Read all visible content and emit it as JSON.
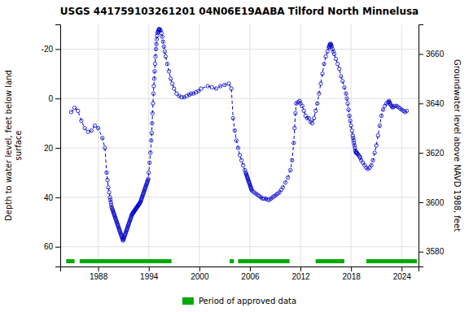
{
  "chart_data": {
    "type": "line",
    "title": "USGS 441759103261201 04N06E19AABA Tilford North Minnelusa",
    "y_label": "Depth to water level, feet below land\nsurface",
    "y2_label": "Groundwater level above NAVD 1988, feet",
    "x": [
      1984.8,
      1985.2,
      1985.6,
      1986.0,
      1986.4,
      1986.8,
      1987.2,
      1987.6,
      1988.0,
      1988.5,
      1988.8,
      1989.0,
      1989.1,
      1989.2,
      1989.3,
      1989.4,
      1989.45,
      1989.5,
      1989.55,
      1989.6,
      1989.65,
      1989.7,
      1989.75,
      1989.8,
      1989.85,
      1989.9,
      1989.95,
      1990.0,
      1990.05,
      1990.1,
      1990.15,
      1990.2,
      1990.25,
      1990.3,
      1990.35,
      1990.4,
      1990.45,
      1990.5,
      1990.55,
      1990.6,
      1990.65,
      1990.7,
      1990.75,
      1990.8,
      1990.85,
      1990.9,
      1990.95,
      1991.0,
      1991.05,
      1991.1,
      1991.15,
      1991.2,
      1991.25,
      1991.3,
      1991.35,
      1991.4,
      1991.45,
      1991.5,
      1991.55,
      1991.6,
      1991.65,
      1991.7,
      1991.75,
      1991.8,
      1991.85,
      1991.9,
      1991.95,
      1992.0,
      1992.05,
      1992.1,
      1992.15,
      1992.2,
      1992.25,
      1992.3,
      1992.35,
      1992.4,
      1992.45,
      1992.5,
      1992.55,
      1992.6,
      1992.65,
      1992.7,
      1992.75,
      1992.8,
      1992.85,
      1992.9,
      1992.95,
      1993.0,
      1993.05,
      1993.1,
      1993.15,
      1993.2,
      1993.25,
      1993.3,
      1993.35,
      1993.4,
      1993.45,
      1993.5,
      1993.55,
      1993.6,
      1993.65,
      1993.7,
      1993.75,
      1993.8,
      1993.85,
      1993.9,
      1993.95,
      1994.0,
      1994.1,
      1994.2,
      1994.3,
      1994.35,
      1994.4,
      1994.45,
      1994.5,
      1994.55,
      1994.6,
      1994.65,
      1994.7,
      1994.75,
      1994.8,
      1994.85,
      1994.9,
      1994.95,
      1995.0,
      1995.05,
      1995.1,
      1995.15,
      1995.2,
      1995.25,
      1995.3,
      1995.4,
      1995.5,
      1995.6,
      1995.7,
      1995.8,
      1995.9,
      1996.0,
      1996.2,
      1996.4,
      1996.6,
      1996.8,
      1997.0,
      1997.3,
      1997.6,
      1997.9,
      1998.2,
      1998.5,
      1998.8,
      1999.0,
      1999.3,
      1999.6,
      1999.9,
      2000.2,
      2001.0,
      2001.5,
      2002.0,
      2002.5,
      2003.0,
      2003.5,
      2003.8,
      2004.0,
      2004.2,
      2004.4,
      2004.6,
      2004.8,
      2005.0,
      2005.2,
      2005.4,
      2005.5,
      2005.55,
      2005.6,
      2005.65,
      2005.7,
      2005.75,
      2005.8,
      2005.85,
      2005.9,
      2005.95,
      2006.0,
      2006.05,
      2006.1,
      2006.15,
      2006.2,
      2006.3,
      2006.5,
      2006.7,
      2006.9,
      2007.1,
      2007.3,
      2007.5,
      2007.7,
      2007.9,
      2008.1,
      2008.3,
      2008.5,
      2008.7,
      2008.9,
      2009.1,
      2009.3,
      2009.5,
      2009.7,
      2009.9,
      2010.2,
      2010.5,
      2010.8,
      2011.0,
      2011.2,
      2011.3,
      2011.4,
      2011.5,
      2011.7,
      2011.9,
      2012.0,
      2012.2,
      2012.4,
      2012.6,
      2012.8,
      2013.0,
      2013.2,
      2013.4,
      2013.6,
      2013.8,
      2014.0,
      2014.2,
      2014.4,
      2014.6,
      2014.8,
      2015.0,
      2015.2,
      2015.35,
      2015.4,
      2015.45,
      2015.5,
      2015.55,
      2015.6,
      2015.65,
      2015.7,
      2015.8,
      2015.9,
      2016.0,
      2016.2,
      2016.4,
      2016.6,
      2016.8,
      2017.0,
      2017.2,
      2017.4,
      2017.5,
      2017.6,
      2017.7,
      2017.8,
      2017.9,
      2018.0,
      2018.1,
      2018.2,
      2018.25,
      2018.3,
      2018.35,
      2018.4,
      2018.45,
      2018.5,
      2018.55,
      2018.6,
      2018.65,
      2018.7,
      2018.8,
      2018.9,
      2019.0,
      2019.1,
      2019.2,
      2019.4,
      2019.6,
      2019.8,
      2020.0,
      2020.2,
      2020.4,
      2020.6,
      2020.8,
      2021.0,
      2021.2,
      2021.4,
      2021.6,
      2021.8,
      2022.0,
      2022.2,
      2022.4,
      2022.5,
      2022.55,
      2022.6,
      2022.7,
      2022.8,
      2022.9,
      2023.0,
      2023.2,
      2023.4,
      2023.6,
      2023.8,
      2024.0,
      2024.2,
      2024.4,
      2024.6
    ],
    "series": [
      {
        "color": "#0000cc",
        "line_style": "dashed",
        "marker": "open-circle",
        "values": [
          5.5,
          3.8,
          5.0,
          9.0,
          12.0,
          13.5,
          13.0,
          11.0,
          12.0,
          16.0,
          20.0,
          30.0,
          33.0,
          36.0,
          38.0,
          40.0,
          41.0,
          42.0,
          43.0,
          44.0,
          44.5,
          45.0,
          45.5,
          46.0,
          46.5,
          47.0,
          47.5,
          48.0,
          48.5,
          49.0,
          49.5,
          50.0,
          50.5,
          51.0,
          51.5,
          52.0,
          52.5,
          53.0,
          53.5,
          54.0,
          54.5,
          55.0,
          55.5,
          56.0,
          56.5,
          57.0,
          57.5,
          57.0,
          56.5,
          56.0,
          55.5,
          55.0,
          54.5,
          54.0,
          53.5,
          53.0,
          52.5,
          52.0,
          51.5,
          51.0,
          50.5,
          50.0,
          49.5,
          49.0,
          48.5,
          48.0,
          47.5,
          47.0,
          46.8,
          46.5,
          46.2,
          46.0,
          45.8,
          45.5,
          45.2,
          45.0,
          44.8,
          44.5,
          44.2,
          44.0,
          43.8,
          43.5,
          43.2,
          43.0,
          42.8,
          42.5,
          42.2,
          42.0,
          41.5,
          41.0,
          40.5,
          40.0,
          39.5,
          39.0,
          38.5,
          38.0,
          37.5,
          37.0,
          36.5,
          36.0,
          35.5,
          35.0,
          34.5,
          34.0,
          33.5,
          33.0,
          32.5,
          30.0,
          26.0,
          22.0,
          17.0,
          14.0,
          10.0,
          6.0,
          2.0,
          -2.0,
          -5.0,
          -8.0,
          -11.0,
          -14.0,
          -17.0,
          -20.0,
          -22.0,
          -24.0,
          -25.5,
          -26.5,
          -27.0,
          -27.5,
          -28.0,
          -28.0,
          -28.0,
          -27.5,
          -26.5,
          -25.0,
          -23.0,
          -21.0,
          -19.0,
          -17.0,
          -14.0,
          -11.0,
          -8.0,
          -6.0,
          -4.0,
          -2.0,
          -1.0,
          -0.5,
          -0.5,
          -1.0,
          -1.5,
          -2.0,
          -2.0,
          -2.5,
          -3.0,
          -4.0,
          -5.0,
          -4.5,
          -4.0,
          -5.0,
          -5.5,
          -6.0,
          -4.0,
          8.0,
          13.0,
          17.0,
          20.0,
          23.0,
          25.0,
          27.0,
          29.0,
          30.0,
          30.5,
          31.0,
          31.5,
          32.0,
          32.5,
          33.0,
          33.5,
          34.0,
          34.5,
          35.0,
          35.5,
          36.0,
          36.5,
          37.0,
          37.5,
          38.0,
          38.5,
          39.0,
          39.5,
          40.0,
          40.5,
          40.5,
          40.5,
          41.0,
          41.0,
          40.5,
          40.0,
          39.5,
          39.0,
          38.5,
          38.0,
          37.0,
          36.0,
          34.0,
          32.0,
          29.0,
          25.0,
          18.0,
          12.0,
          6.0,
          2.0,
          1.5,
          1.0,
          2.0,
          3.0,
          5.0,
          7.0,
          8.0,
          8.0,
          9.5,
          10.0,
          8.0,
          5.0,
          2.0,
          -2.0,
          -6.0,
          -10.0,
          -14.0,
          -17.0,
          -19.0,
          -20.5,
          -21.0,
          -21.5,
          -22.0,
          -22.0,
          -22.0,
          -21.5,
          -21.0,
          -20.0,
          -19.0,
          -18.0,
          -16.0,
          -14.0,
          -12.0,
          -9.0,
          -7.0,
          -4.5,
          -2.0,
          0.0,
          2.0,
          4.5,
          7.0,
          9.0,
          11.0,
          13.0,
          15.0,
          16.0,
          17.0,
          18.0,
          19.0,
          20.0,
          21.0,
          21.5,
          22.0,
          22.0,
          22.0,
          22.5,
          23.0,
          23.5,
          24.0,
          25.0,
          26.0,
          27.0,
          28.0,
          28.5,
          28.0,
          27.0,
          25.0,
          22.0,
          19.0,
          15.0,
          11.0,
          7.0,
          4.5,
          3.0,
          2.0,
          1.5,
          1.0,
          1.5,
          2.0,
          2.5,
          3.0,
          3.5,
          3.5,
          3.0,
          3.0,
          3.5,
          4.0,
          4.5,
          5.0,
          5.5,
          5.0
        ]
      }
    ],
    "periods": {
      "name": "Period of approved data",
      "color": "#00aa00",
      "ranges": [
        [
          1984.2,
          1985.2
        ],
        [
          1985.8,
          1996.7
        ],
        [
          2003.6,
          2004.1
        ],
        [
          2004.6,
          2010.7
        ],
        [
          2013.8,
          2017.2
        ],
        [
          2019.8,
          2025.8
        ]
      ]
    },
    "xlim": [
      1983.5,
      2026.0
    ],
    "xticks": [
      1988,
      1994,
      2000,
      2006,
      2012,
      2018,
      2024
    ],
    "ylim": [
      68,
      -30
    ],
    "yticks": [
      60,
      40,
      20,
      0,
      -20
    ],
    "y2lim": [
      3574,
      3672
    ],
    "y2ticks": [
      3580,
      3600,
      3620,
      3640,
      3660
    ],
    "grid": true,
    "legend": "bottom"
  }
}
